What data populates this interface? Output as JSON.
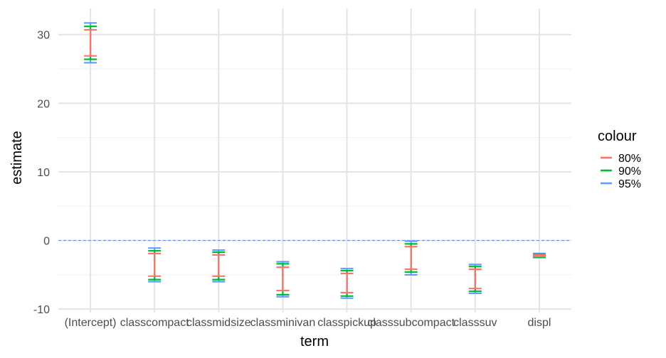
{
  "chart_data": {
    "type": "errorbar",
    "title": "",
    "xlabel": "term",
    "ylabel": "estimate",
    "categories": [
      "(Intercept)",
      "classcompact",
      "classmidsize",
      "classminivan",
      "classpickup",
      "classsubcompact",
      "classsuv",
      "displ"
    ],
    "yticks": [
      -10,
      0,
      10,
      20,
      30
    ],
    "ylim": [
      -10.5,
      33.8
    ],
    "reference_line": {
      "y": 0,
      "style": "dashed",
      "color": "#6f8ef0"
    },
    "grid": true,
    "legend": {
      "title": "colour",
      "position": "right"
    },
    "series": [
      {
        "name": "95%",
        "color": "#619CFF",
        "low": [
          25.9,
          -6.0,
          -6.0,
          -8.2,
          -8.4,
          -5.0,
          -7.7,
          -2.5
        ],
        "high": [
          31.7,
          -1.1,
          -1.4,
          -3.1,
          -4.1,
          -0.1,
          -3.5,
          -1.9
        ]
      },
      {
        "name": "90%",
        "color": "#00BA38",
        "low": [
          26.4,
          -5.7,
          -5.7,
          -7.9,
          -8.1,
          -4.6,
          -7.4,
          -2.4
        ],
        "high": [
          31.2,
          -1.5,
          -1.7,
          -3.4,
          -4.4,
          -0.5,
          -3.8,
          -2.0
        ]
      },
      {
        "name": "80%",
        "color": "#F8766D",
        "low": [
          26.9,
          -5.2,
          -5.2,
          -7.3,
          -7.6,
          -4.2,
          -7.0,
          -2.3
        ],
        "high": [
          30.7,
          -1.9,
          -2.1,
          -3.9,
          -4.8,
          -0.9,
          -4.2,
          -2.1
        ]
      }
    ],
    "legend_order": [
      "80%",
      "90%",
      "95%"
    ]
  }
}
